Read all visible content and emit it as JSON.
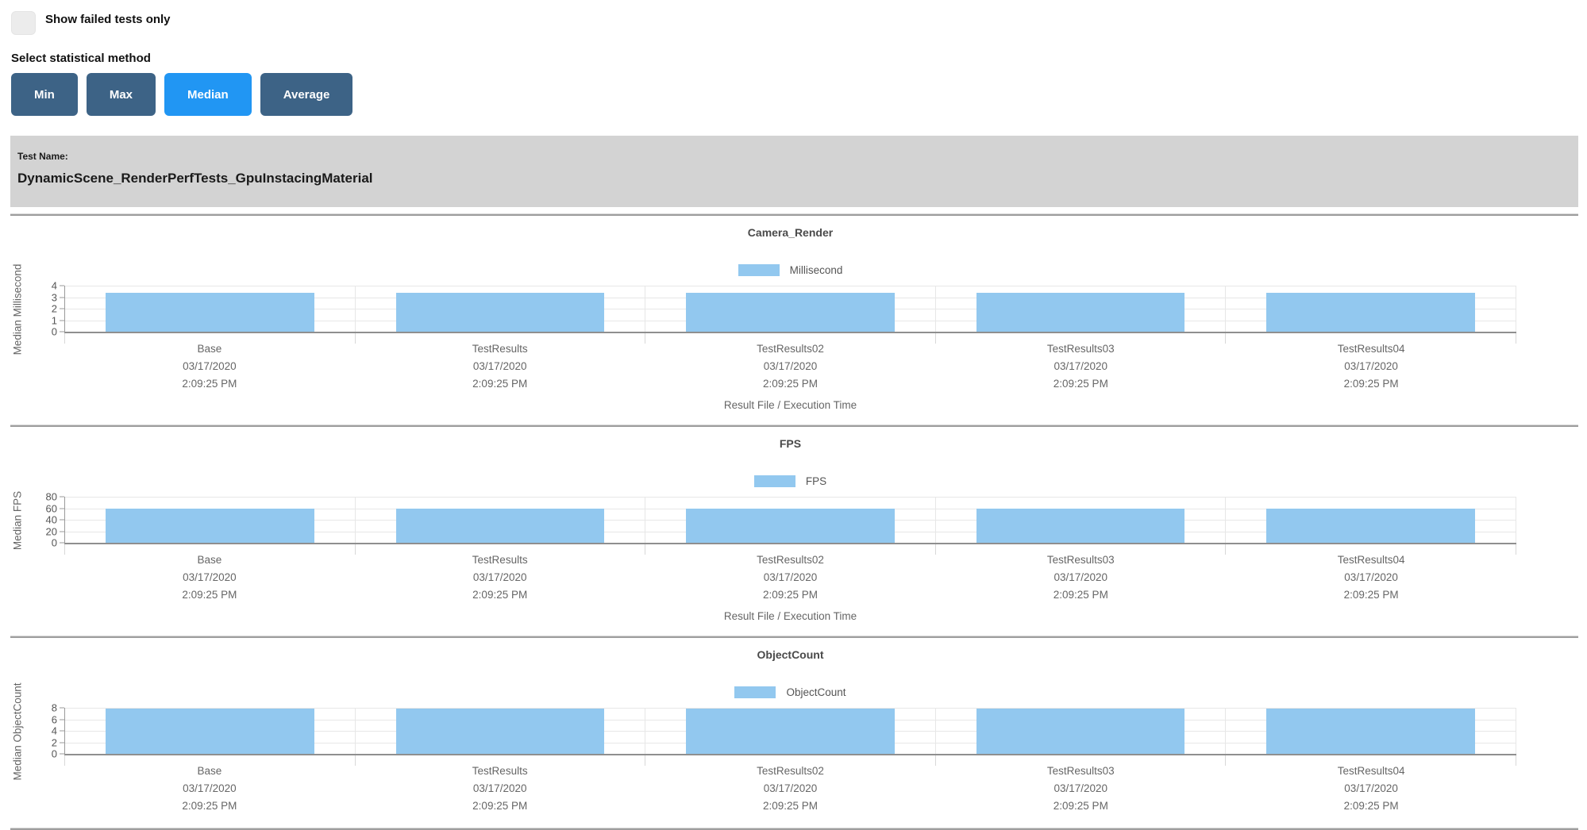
{
  "page": {
    "show_failed_label": "Show failed tests only",
    "stat_method_label": "Select statistical method"
  },
  "buttons": [
    {
      "label": "Min",
      "active": false
    },
    {
      "label": "Max",
      "active": false
    },
    {
      "label": "Median",
      "active": true
    },
    {
      "label": "Average",
      "active": false
    }
  ],
  "test_banner": {
    "label": "Test Name:",
    "value": "DynamicScene_RenderPerfTests_GpuInstacingMaterial"
  },
  "colors": {
    "bar": "#92c8ef",
    "button": "#3d6386",
    "button_active": "#2196f3",
    "banner_bg": "#d3d3d3"
  },
  "chart_data": [
    {
      "type": "bar",
      "title": "Camera_Render",
      "legend": "Millisecond",
      "ylabel": "Median Millisecond",
      "xlabel": "Result File / Execution Time",
      "ylim": [
        0,
        4
      ],
      "yticks": [
        0,
        1,
        2,
        3,
        4
      ],
      "grid": true,
      "legend_position": "top-center",
      "categories": [
        {
          "name": "Base",
          "date": "03/17/2020",
          "time": "2:09:25 PM"
        },
        {
          "name": "TestResults",
          "date": "03/17/2020",
          "time": "2:09:25 PM"
        },
        {
          "name": "TestResults02",
          "date": "03/17/2020",
          "time": "2:09:25 PM"
        },
        {
          "name": "TestResults03",
          "date": "03/17/2020",
          "time": "2:09:25 PM"
        },
        {
          "name": "TestResults04",
          "date": "03/17/2020",
          "time": "2:09:25 PM"
        }
      ],
      "values": [
        3.4,
        3.4,
        3.4,
        3.4,
        3.4
      ]
    },
    {
      "type": "bar",
      "title": "FPS",
      "legend": "FPS",
      "ylabel": "Median FPS",
      "xlabel": "Result File / Execution Time",
      "ylim": [
        0,
        80
      ],
      "yticks": [
        0,
        20,
        40,
        60,
        80
      ],
      "grid": true,
      "legend_position": "top-center",
      "categories": [
        {
          "name": "Base",
          "date": "03/17/2020",
          "time": "2:09:25 PM"
        },
        {
          "name": "TestResults",
          "date": "03/17/2020",
          "time": "2:09:25 PM"
        },
        {
          "name": "TestResults02",
          "date": "03/17/2020",
          "time": "2:09:25 PM"
        },
        {
          "name": "TestResults03",
          "date": "03/17/2020",
          "time": "2:09:25 PM"
        },
        {
          "name": "TestResults04",
          "date": "03/17/2020",
          "time": "2:09:25 PM"
        }
      ],
      "values": [
        59,
        59,
        59,
        59,
        59
      ]
    },
    {
      "type": "bar",
      "title": "ObjectCount",
      "legend": "ObjectCount",
      "ylabel": "Median ObjectCount",
      "xlabel": "",
      "ylim": [
        0,
        8
      ],
      "yticks": [
        0,
        2,
        4,
        6,
        8
      ],
      "grid": true,
      "legend_position": "top-center",
      "categories": [
        {
          "name": "Base",
          "date": "03/17/2020",
          "time": "2:09:25 PM"
        },
        {
          "name": "TestResults",
          "date": "03/17/2020",
          "time": "2:09:25 PM"
        },
        {
          "name": "TestResults02",
          "date": "03/17/2020",
          "time": "2:09:25 PM"
        },
        {
          "name": "TestResults03",
          "date": "03/17/2020",
          "time": "2:09:25 PM"
        },
        {
          "name": "TestResults04",
          "date": "03/17/2020",
          "time": "2:09:25 PM"
        }
      ],
      "values": [
        7.8,
        7.8,
        7.8,
        7.8,
        7.8
      ]
    }
  ]
}
